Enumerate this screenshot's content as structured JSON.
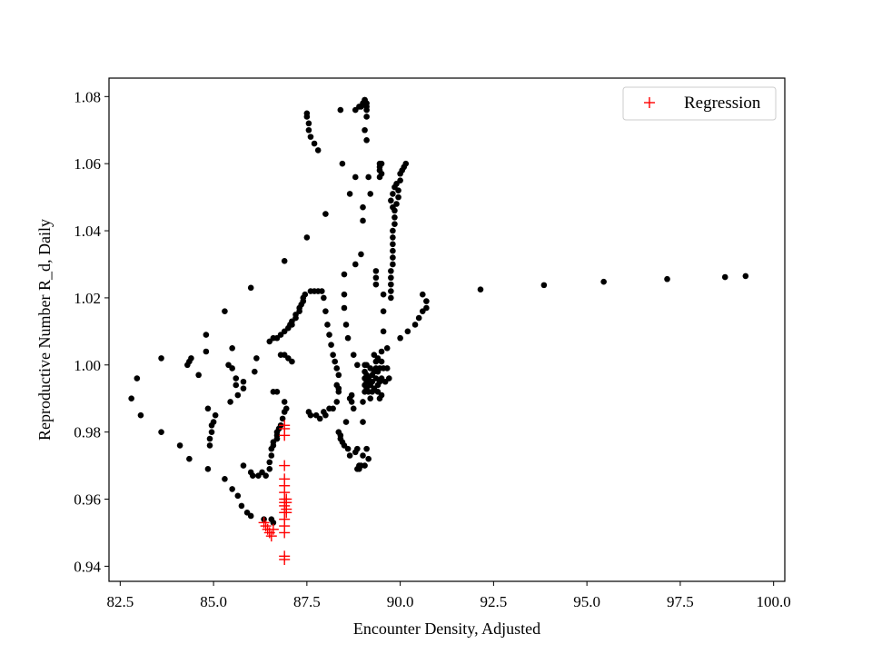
{
  "chart_data": {
    "type": "scatter",
    "xlabel": "Encounter Density, Adjusted",
    "ylabel": "Reproductive Number R_d, Daily",
    "xlim": [
      82.2,
      100.3
    ],
    "ylim": [
      0.9355,
      1.0855
    ],
    "xticks": [
      82.5,
      85.0,
      87.5,
      90.0,
      92.5,
      95.0,
      97.5,
      100.0
    ],
    "xtick_labels": [
      "82.5",
      "85.0",
      "87.5",
      "90.0",
      "92.5",
      "95.0",
      "97.5",
      "100.0"
    ],
    "yticks": [
      0.94,
      0.96,
      0.98,
      1.0,
      1.02,
      1.04,
      1.06,
      1.08
    ],
    "ytick_labels": [
      "0.94",
      "0.96",
      "0.98",
      "1.00",
      "1.02",
      "1.04",
      "1.06",
      "1.08"
    ],
    "grid": false,
    "legend": {
      "position": "top-right",
      "entries": [
        "Regression"
      ]
    },
    "colors": {
      "observed": "#000000",
      "regression": "#ff0000"
    },
    "series": [
      {
        "marker": "dot",
        "color": "#000000",
        "points": [
          [
            82.8,
            0.99
          ],
          [
            82.95,
            0.996
          ],
          [
            83.05,
            0.985
          ],
          [
            83.6,
            1.002
          ],
          [
            83.6,
            0.98
          ],
          [
            84.1,
            0.976
          ],
          [
            84.35,
            0.972
          ],
          [
            84.3,
            1.0
          ],
          [
            84.35,
            1.001
          ],
          [
            84.4,
            1.002
          ],
          [
            84.6,
            0.997
          ],
          [
            84.8,
            1.004
          ],
          [
            84.8,
            1.009
          ],
          [
            84.85,
            0.987
          ],
          [
            84.85,
            0.969
          ],
          [
            84.9,
            0.976
          ],
          [
            84.9,
            0.978
          ],
          [
            84.95,
            0.98
          ],
          [
            84.95,
            0.982
          ],
          [
            85.0,
            0.983
          ],
          [
            85.05,
            0.985
          ],
          [
            85.3,
            1.016
          ],
          [
            85.3,
            0.966
          ],
          [
            85.4,
            1.0
          ],
          [
            85.45,
            0.989
          ],
          [
            85.5,
            0.963
          ],
          [
            85.5,
            0.999
          ],
          [
            85.5,
            1.005
          ],
          [
            85.6,
            0.996
          ],
          [
            85.6,
            0.994
          ],
          [
            85.65,
            0.991
          ],
          [
            85.65,
            0.961
          ],
          [
            85.75,
            0.958
          ],
          [
            85.8,
            0.995
          ],
          [
            85.8,
            0.993
          ],
          [
            85.8,
            0.97
          ],
          [
            85.9,
            0.956
          ],
          [
            86.0,
            0.955
          ],
          [
            86.0,
            1.023
          ],
          [
            86.0,
            0.968
          ],
          [
            86.05,
            0.967
          ],
          [
            86.1,
            0.998
          ],
          [
            86.15,
            1.002
          ],
          [
            86.2,
            0.967
          ],
          [
            86.3,
            0.968
          ],
          [
            86.35,
            0.954
          ],
          [
            86.4,
            0.967
          ],
          [
            86.5,
            0.969
          ],
          [
            86.5,
            0.971
          ],
          [
            86.5,
            1.007
          ],
          [
            86.55,
            0.973
          ],
          [
            86.55,
            0.975
          ],
          [
            86.55,
            0.954
          ],
          [
            86.6,
            0.976
          ],
          [
            86.6,
            0.977
          ],
          [
            86.6,
            0.953
          ],
          [
            86.6,
            0.992
          ],
          [
            86.6,
            1.008
          ],
          [
            86.7,
            0.978
          ],
          [
            86.7,
            0.979
          ],
          [
            86.7,
            0.98
          ],
          [
            86.7,
            1.008
          ],
          [
            86.7,
            0.992
          ],
          [
            86.75,
            0.981
          ],
          [
            86.8,
            0.982
          ],
          [
            86.8,
            1.009
          ],
          [
            86.8,
            1.003
          ],
          [
            86.85,
            0.984
          ],
          [
            86.9,
            0.986
          ],
          [
            86.9,
            0.989
          ],
          [
            86.9,
            1.031
          ],
          [
            86.9,
            1.01
          ],
          [
            86.9,
            1.003
          ],
          [
            86.95,
            0.987
          ],
          [
            87.0,
            1.011
          ],
          [
            87.0,
            1.002
          ],
          [
            87.05,
            1.012
          ],
          [
            87.1,
            1.012
          ],
          [
            87.1,
            1.013
          ],
          [
            87.1,
            1.001
          ],
          [
            87.2,
            1.014
          ],
          [
            87.2,
            1.015
          ],
          [
            87.3,
            1.016
          ],
          [
            87.3,
            1.017
          ],
          [
            87.35,
            1.018
          ],
          [
            87.4,
            1.019
          ],
          [
            87.4,
            1.02
          ],
          [
            87.45,
            1.021
          ],
          [
            87.5,
            1.038
          ],
          [
            87.5,
            1.075
          ],
          [
            87.5,
            1.074
          ],
          [
            87.55,
            1.072
          ],
          [
            87.55,
            1.07
          ],
          [
            87.55,
            0.986
          ],
          [
            87.6,
            1.022
          ],
          [
            87.6,
            1.068
          ],
          [
            87.6,
            0.985
          ],
          [
            87.7,
            1.066
          ],
          [
            87.7,
            1.022
          ],
          [
            87.75,
            0.985
          ],
          [
            87.8,
            1.022
          ],
          [
            87.8,
            1.064
          ],
          [
            87.85,
            0.984
          ],
          [
            87.9,
            1.022
          ],
          [
            87.95,
            1.02
          ],
          [
            87.95,
            0.986
          ],
          [
            88.0,
            1.045
          ],
          [
            88.0,
            1.016
          ],
          [
            88.0,
            0.985
          ],
          [
            88.05,
            1.012
          ],
          [
            88.1,
            1.009
          ],
          [
            88.1,
            0.987
          ],
          [
            88.15,
            1.006
          ],
          [
            88.2,
            1.003
          ],
          [
            88.2,
            0.987
          ],
          [
            88.25,
            1.001
          ],
          [
            88.3,
            0.999
          ],
          [
            88.3,
            0.989
          ],
          [
            88.3,
            0.994
          ],
          [
            88.35,
            0.997
          ],
          [
            88.35,
            0.993
          ],
          [
            88.35,
            0.992
          ],
          [
            88.35,
            0.98
          ],
          [
            88.4,
            1.076
          ],
          [
            88.4,
            0.979
          ],
          [
            88.4,
            0.978
          ],
          [
            88.45,
            1.06
          ],
          [
            88.45,
            0.977
          ],
          [
            88.5,
            0.976
          ],
          [
            88.5,
            1.021
          ],
          [
            88.5,
            1.027
          ],
          [
            88.5,
            1.017
          ],
          [
            88.55,
            1.012
          ],
          [
            88.55,
            0.983
          ],
          [
            88.6,
            1.008
          ],
          [
            88.6,
            0.975
          ],
          [
            88.65,
            1.051
          ],
          [
            88.65,
            0.99
          ],
          [
            88.65,
            0.973
          ],
          [
            88.7,
            0.991
          ],
          [
            88.7,
            0.989
          ],
          [
            88.75,
            1.003
          ],
          [
            88.75,
            0.987
          ],
          [
            88.8,
            1.076
          ],
          [
            88.8,
            1.03
          ],
          [
            88.8,
            1.056
          ],
          [
            88.8,
            0.974
          ],
          [
            88.85,
            0.975
          ],
          [
            88.85,
            1.0
          ],
          [
            88.85,
            0.969
          ],
          [
            88.9,
            1.077
          ],
          [
            88.9,
            0.969
          ],
          [
            88.9,
            0.97
          ],
          [
            88.95,
            1.077
          ],
          [
            88.95,
            0.97
          ],
          [
            88.95,
            1.033
          ],
          [
            89.0,
            1.078
          ],
          [
            89.0,
            1.043
          ],
          [
            89.0,
            1.047
          ],
          [
            89.0,
            0.983
          ],
          [
            89.0,
            0.989
          ],
          [
            89.0,
            0.973
          ],
          [
            89.05,
            1.079
          ],
          [
            89.05,
            1.079
          ],
          [
            89.05,
            1.07
          ],
          [
            89.05,
            1.0
          ],
          [
            89.05,
            0.998
          ],
          [
            89.05,
            0.996
          ],
          [
            89.05,
            0.994
          ],
          [
            89.05,
            0.992
          ],
          [
            89.05,
            0.97
          ],
          [
            89.1,
            1.078
          ],
          [
            89.1,
            1.077
          ],
          [
            89.1,
            1.076
          ],
          [
            89.1,
            1.074
          ],
          [
            89.1,
            1.067
          ],
          [
            89.1,
            1.0
          ],
          [
            89.1,
            0.997
          ],
          [
            89.1,
            0.995
          ],
          [
            89.1,
            0.993
          ],
          [
            89.1,
            0.975
          ],
          [
            89.15,
            1.056
          ],
          [
            89.15,
            0.996
          ],
          [
            89.15,
            0.992
          ],
          [
            89.15,
            0.972
          ],
          [
            89.2,
            1.051
          ],
          [
            89.2,
            0.999
          ],
          [
            89.2,
            0.994
          ],
          [
            89.2,
            0.99
          ],
          [
            89.25,
            0.997
          ],
          [
            89.25,
            0.995
          ],
          [
            89.25,
            0.992
          ],
          [
            89.3,
            1.003
          ],
          [
            89.3,
            0.998
          ],
          [
            89.3,
            0.993
          ],
          [
            89.35,
            1.024
          ],
          [
            89.35,
            1.026
          ],
          [
            89.35,
            1.028
          ],
          [
            89.35,
            0.996
          ],
          [
            89.35,
            0.999
          ],
          [
            89.35,
            1.001
          ],
          [
            89.4,
            0.992
          ],
          [
            89.4,
            0.994
          ],
          [
            89.4,
            0.998
          ],
          [
            89.4,
            1.002
          ],
          [
            89.45,
            1.06
          ],
          [
            89.45,
            1.059
          ],
          [
            89.45,
            1.058
          ],
          [
            89.45,
            1.056
          ],
          [
            89.45,
            0.99
          ],
          [
            89.45,
            0.995
          ],
          [
            89.45,
            0.999
          ],
          [
            89.5,
            1.06
          ],
          [
            89.5,
            1.057
          ],
          [
            89.5,
            1.001
          ],
          [
            89.5,
            1.004
          ],
          [
            89.5,
            0.991
          ],
          [
            89.5,
            0.996
          ],
          [
            89.55,
            1.01
          ],
          [
            89.55,
            1.016
          ],
          [
            89.55,
            1.021
          ],
          [
            89.55,
            0.999
          ],
          [
            89.6,
            0.995
          ],
          [
            89.65,
            1.005
          ],
          [
            89.65,
            0.999
          ],
          [
            89.7,
            0.996
          ],
          [
            89.75,
            1.02
          ],
          [
            89.75,
            1.022
          ],
          [
            89.75,
            1.024
          ],
          [
            89.75,
            1.026
          ],
          [
            89.75,
            1.028
          ],
          [
            89.75,
            1.049
          ],
          [
            89.8,
            1.03
          ],
          [
            89.8,
            1.032
          ],
          [
            89.8,
            1.034
          ],
          [
            89.8,
            1.036
          ],
          [
            89.8,
            1.038
          ],
          [
            89.8,
            1.04
          ],
          [
            89.8,
            1.047
          ],
          [
            89.8,
            1.051
          ],
          [
            89.85,
            1.042
          ],
          [
            89.85,
            1.044
          ],
          [
            89.85,
            1.046
          ],
          [
            89.85,
            1.053
          ],
          [
            89.9,
            1.048
          ],
          [
            89.9,
            1.054
          ],
          [
            89.95,
            1.05
          ],
          [
            89.95,
            1.052
          ],
          [
            90.0,
            1.055
          ],
          [
            90.0,
            1.057
          ],
          [
            90.0,
            1.008
          ],
          [
            90.05,
            1.058
          ],
          [
            90.1,
            1.059
          ],
          [
            90.15,
            1.06
          ],
          [
            90.2,
            1.01
          ],
          [
            90.4,
            1.012
          ],
          [
            90.5,
            1.014
          ],
          [
            90.6,
            1.016
          ],
          [
            90.6,
            1.021
          ],
          [
            90.7,
            1.017
          ],
          [
            90.7,
            1.019
          ],
          [
            92.15,
            1.0225
          ],
          [
            93.85,
            1.0238
          ],
          [
            95.45,
            1.0248
          ],
          [
            97.15,
            1.0256
          ],
          [
            98.7,
            1.0262
          ],
          [
            99.25,
            1.0265
          ]
        ]
      },
      {
        "name": "Regression",
        "marker": "plus",
        "color": "#ff0000",
        "points": [
          [
            86.35,
            0.953
          ],
          [
            86.4,
            0.952
          ],
          [
            86.45,
            0.951
          ],
          [
            86.5,
            0.95
          ],
          [
            86.55,
            0.949
          ],
          [
            86.6,
            0.951
          ],
          [
            86.9,
            0.943
          ],
          [
            86.9,
            0.942
          ],
          [
            86.9,
            0.95
          ],
          [
            86.9,
            0.952
          ],
          [
            86.9,
            0.954
          ],
          [
            86.9,
            0.956
          ],
          [
            86.9,
            0.958
          ],
          [
            86.9,
            0.959
          ],
          [
            86.9,
            0.96
          ],
          [
            86.9,
            0.962
          ],
          [
            86.9,
            0.964
          ],
          [
            86.9,
            0.966
          ],
          [
            86.9,
            0.97
          ],
          [
            86.9,
            0.979
          ],
          [
            86.9,
            0.981
          ],
          [
            86.9,
            0.982
          ],
          [
            86.95,
            0.957
          ],
          [
            86.95,
            0.959
          ],
          [
            86.95,
            0.96
          ],
          [
            86.95,
            0.956
          ]
        ]
      }
    ]
  }
}
